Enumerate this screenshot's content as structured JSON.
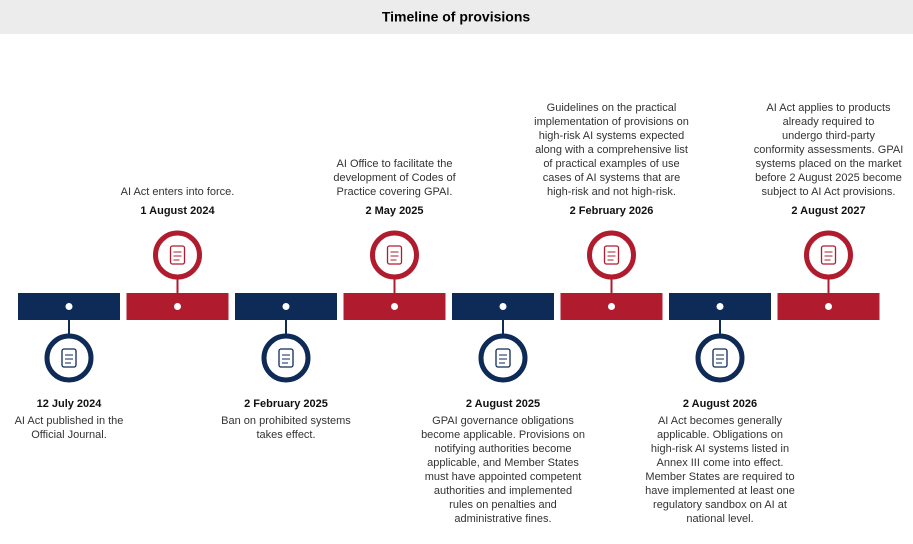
{
  "header": {
    "title": "Timeline of provisions"
  },
  "events": [
    {
      "date": "12 July 2024",
      "description": [
        "AI Act published in the",
        "Official Journal."
      ]
    },
    {
      "date": "1 August 2024",
      "description": [
        "AI Act enters into force."
      ]
    },
    {
      "date": "2 February 2025",
      "description": [
        "Ban on prohibited systems",
        "takes effect."
      ]
    },
    {
      "date": "2 May 2025",
      "description": [
        "AI Office to facilitate the",
        "development of Codes of",
        "Practice covering GPAI."
      ]
    },
    {
      "date": "2 August 2025",
      "description": [
        "GPAI governance obligations",
        "become applicable. Provisions on",
        "notifying authorities become",
        "applicable, and Member States",
        "must have appointed competent",
        "authorities and implemented",
        "rules on penalties and",
        "administrative fines."
      ]
    },
    {
      "date": "2 February 2026",
      "description": [
        "Guidelines on the practical",
        "implementation of provisions on",
        "high-risk AI systems expected",
        "along with a comprehensive list",
        "of practical examples of use",
        "cases of AI systems that are",
        "high-risk and not high-risk."
      ]
    },
    {
      "date": "2 August 2026",
      "description": [
        "AI Act becomes generally",
        "applicable. Obligations on",
        "high-risk AI systems listed in",
        "Annex III come into effect.",
        "Member States are required to",
        "have implemented at least one",
        "regulatory sandbox on AI at",
        "national level."
      ]
    },
    {
      "date": "2 August 2027",
      "description": [
        "AI Act applies to products",
        "already required to",
        "undergo third-party",
        "conformity assessments. GPAI",
        "systems placed on the market",
        "before 2 August 2025 become",
        "subject to AI Act provisions."
      ]
    }
  ]
}
